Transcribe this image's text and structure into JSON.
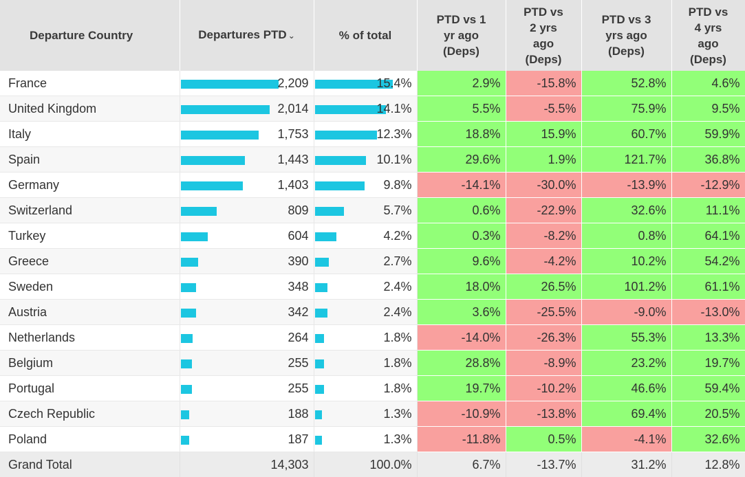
{
  "colors": {
    "bar": "#1cc6e1",
    "positive": "#92ff78",
    "negative": "#f9a09e",
    "header_bg": "#e3e3e3"
  },
  "headers": {
    "country": "Departure Country",
    "departures": "Departures PTD",
    "pct": "% of total",
    "vs1": [
      "PTD vs 1",
      "yr ago",
      "(Deps)"
    ],
    "vs2": [
      "PTD vs",
      "2 yrs",
      "ago",
      "(Deps)"
    ],
    "vs3": [
      "PTD vs 3",
      "yrs ago",
      "(Deps)"
    ],
    "vs4": [
      "PTD vs",
      "4 yrs",
      "ago",
      "(Deps)"
    ]
  },
  "sort_icon": "sort-descending-icon",
  "chart_data": {
    "type": "table",
    "columns": [
      "Departure Country",
      "Departures PTD",
      "% of total",
      "PTD vs 1 yr ago (Deps)",
      "PTD vs 2 yrs ago (Deps)",
      "PTD vs 3 yrs ago (Deps)",
      "PTD vs 4 yrs ago (Deps)"
    ],
    "rows": [
      {
        "country": "France",
        "departures": 2209,
        "departures_label": "2,209",
        "pct": 15.4,
        "pct_label": "15.4%",
        "vs1": "2.9%",
        "vs2": "-15.8%",
        "vs3": "52.8%",
        "vs4": "4.6%"
      },
      {
        "country": "United Kingdom",
        "departures": 2014,
        "departures_label": "2,014",
        "pct": 14.1,
        "pct_label": "14.1%",
        "vs1": "5.5%",
        "vs2": "-5.5%",
        "vs3": "75.9%",
        "vs4": "9.5%"
      },
      {
        "country": "Italy",
        "departures": 1753,
        "departures_label": "1,753",
        "pct": 12.3,
        "pct_label": "12.3%",
        "vs1": "18.8%",
        "vs2": "15.9%",
        "vs3": "60.7%",
        "vs4": "59.9%"
      },
      {
        "country": "Spain",
        "departures": 1443,
        "departures_label": "1,443",
        "pct": 10.1,
        "pct_label": "10.1%",
        "vs1": "29.6%",
        "vs2": "1.9%",
        "vs3": "121.7%",
        "vs4": "36.8%"
      },
      {
        "country": "Germany",
        "departures": 1403,
        "departures_label": "1,403",
        "pct": 9.8,
        "pct_label": "9.8%",
        "vs1": "-14.1%",
        "vs2": "-30.0%",
        "vs3": "-13.9%",
        "vs4": "-12.9%"
      },
      {
        "country": "Switzerland",
        "departures": 809,
        "departures_label": "809",
        "pct": 5.7,
        "pct_label": "5.7%",
        "vs1": "0.6%",
        "vs2": "-22.9%",
        "vs3": "32.6%",
        "vs4": "11.1%"
      },
      {
        "country": "Turkey",
        "departures": 604,
        "departures_label": "604",
        "pct": 4.2,
        "pct_label": "4.2%",
        "vs1": "0.3%",
        "vs2": "-8.2%",
        "vs3": "0.8%",
        "vs4": "64.1%"
      },
      {
        "country": "Greece",
        "departures": 390,
        "departures_label": "390",
        "pct": 2.7,
        "pct_label": "2.7%",
        "vs1": "9.6%",
        "vs2": "-4.2%",
        "vs3": "10.2%",
        "vs4": "54.2%"
      },
      {
        "country": "Sweden",
        "departures": 348,
        "departures_label": "348",
        "pct": 2.4,
        "pct_label": "2.4%",
        "vs1": "18.0%",
        "vs2": "26.5%",
        "vs3": "101.2%",
        "vs4": "61.1%"
      },
      {
        "country": "Austria",
        "departures": 342,
        "departures_label": "342",
        "pct": 2.4,
        "pct_label": "2.4%",
        "vs1": "3.6%",
        "vs2": "-25.5%",
        "vs3": "-9.0%",
        "vs4": "-13.0%"
      },
      {
        "country": "Netherlands",
        "departures": 264,
        "departures_label": "264",
        "pct": 1.8,
        "pct_label": "1.8%",
        "vs1": "-14.0%",
        "vs2": "-26.3%",
        "vs3": "55.3%",
        "vs4": "13.3%"
      },
      {
        "country": "Belgium",
        "departures": 255,
        "departures_label": "255",
        "pct": 1.8,
        "pct_label": "1.8%",
        "vs1": "28.8%",
        "vs2": "-8.9%",
        "vs3": "23.2%",
        "vs4": "19.7%"
      },
      {
        "country": "Portugal",
        "departures": 255,
        "departures_label": "255",
        "pct": 1.8,
        "pct_label": "1.8%",
        "vs1": "19.7%",
        "vs2": "-10.2%",
        "vs3": "46.6%",
        "vs4": "59.4%"
      },
      {
        "country": "Czech Republic",
        "departures": 188,
        "departures_label": "188",
        "pct": 1.3,
        "pct_label": "1.3%",
        "vs1": "-10.9%",
        "vs2": "-13.8%",
        "vs3": "69.4%",
        "vs4": "20.5%"
      },
      {
        "country": "Poland",
        "departures": 187,
        "departures_label": "187",
        "pct": 1.3,
        "pct_label": "1.3%",
        "vs1": "-11.8%",
        "vs2": "0.5%",
        "vs3": "-4.1%",
        "vs4": "32.6%"
      }
    ],
    "total": {
      "country": "Grand Total",
      "departures_label": "14,303",
      "pct_label": "100.0%",
      "vs1": "6.7%",
      "vs2": "-13.7%",
      "vs3": "31.2%",
      "vs4": "12.8%"
    }
  }
}
